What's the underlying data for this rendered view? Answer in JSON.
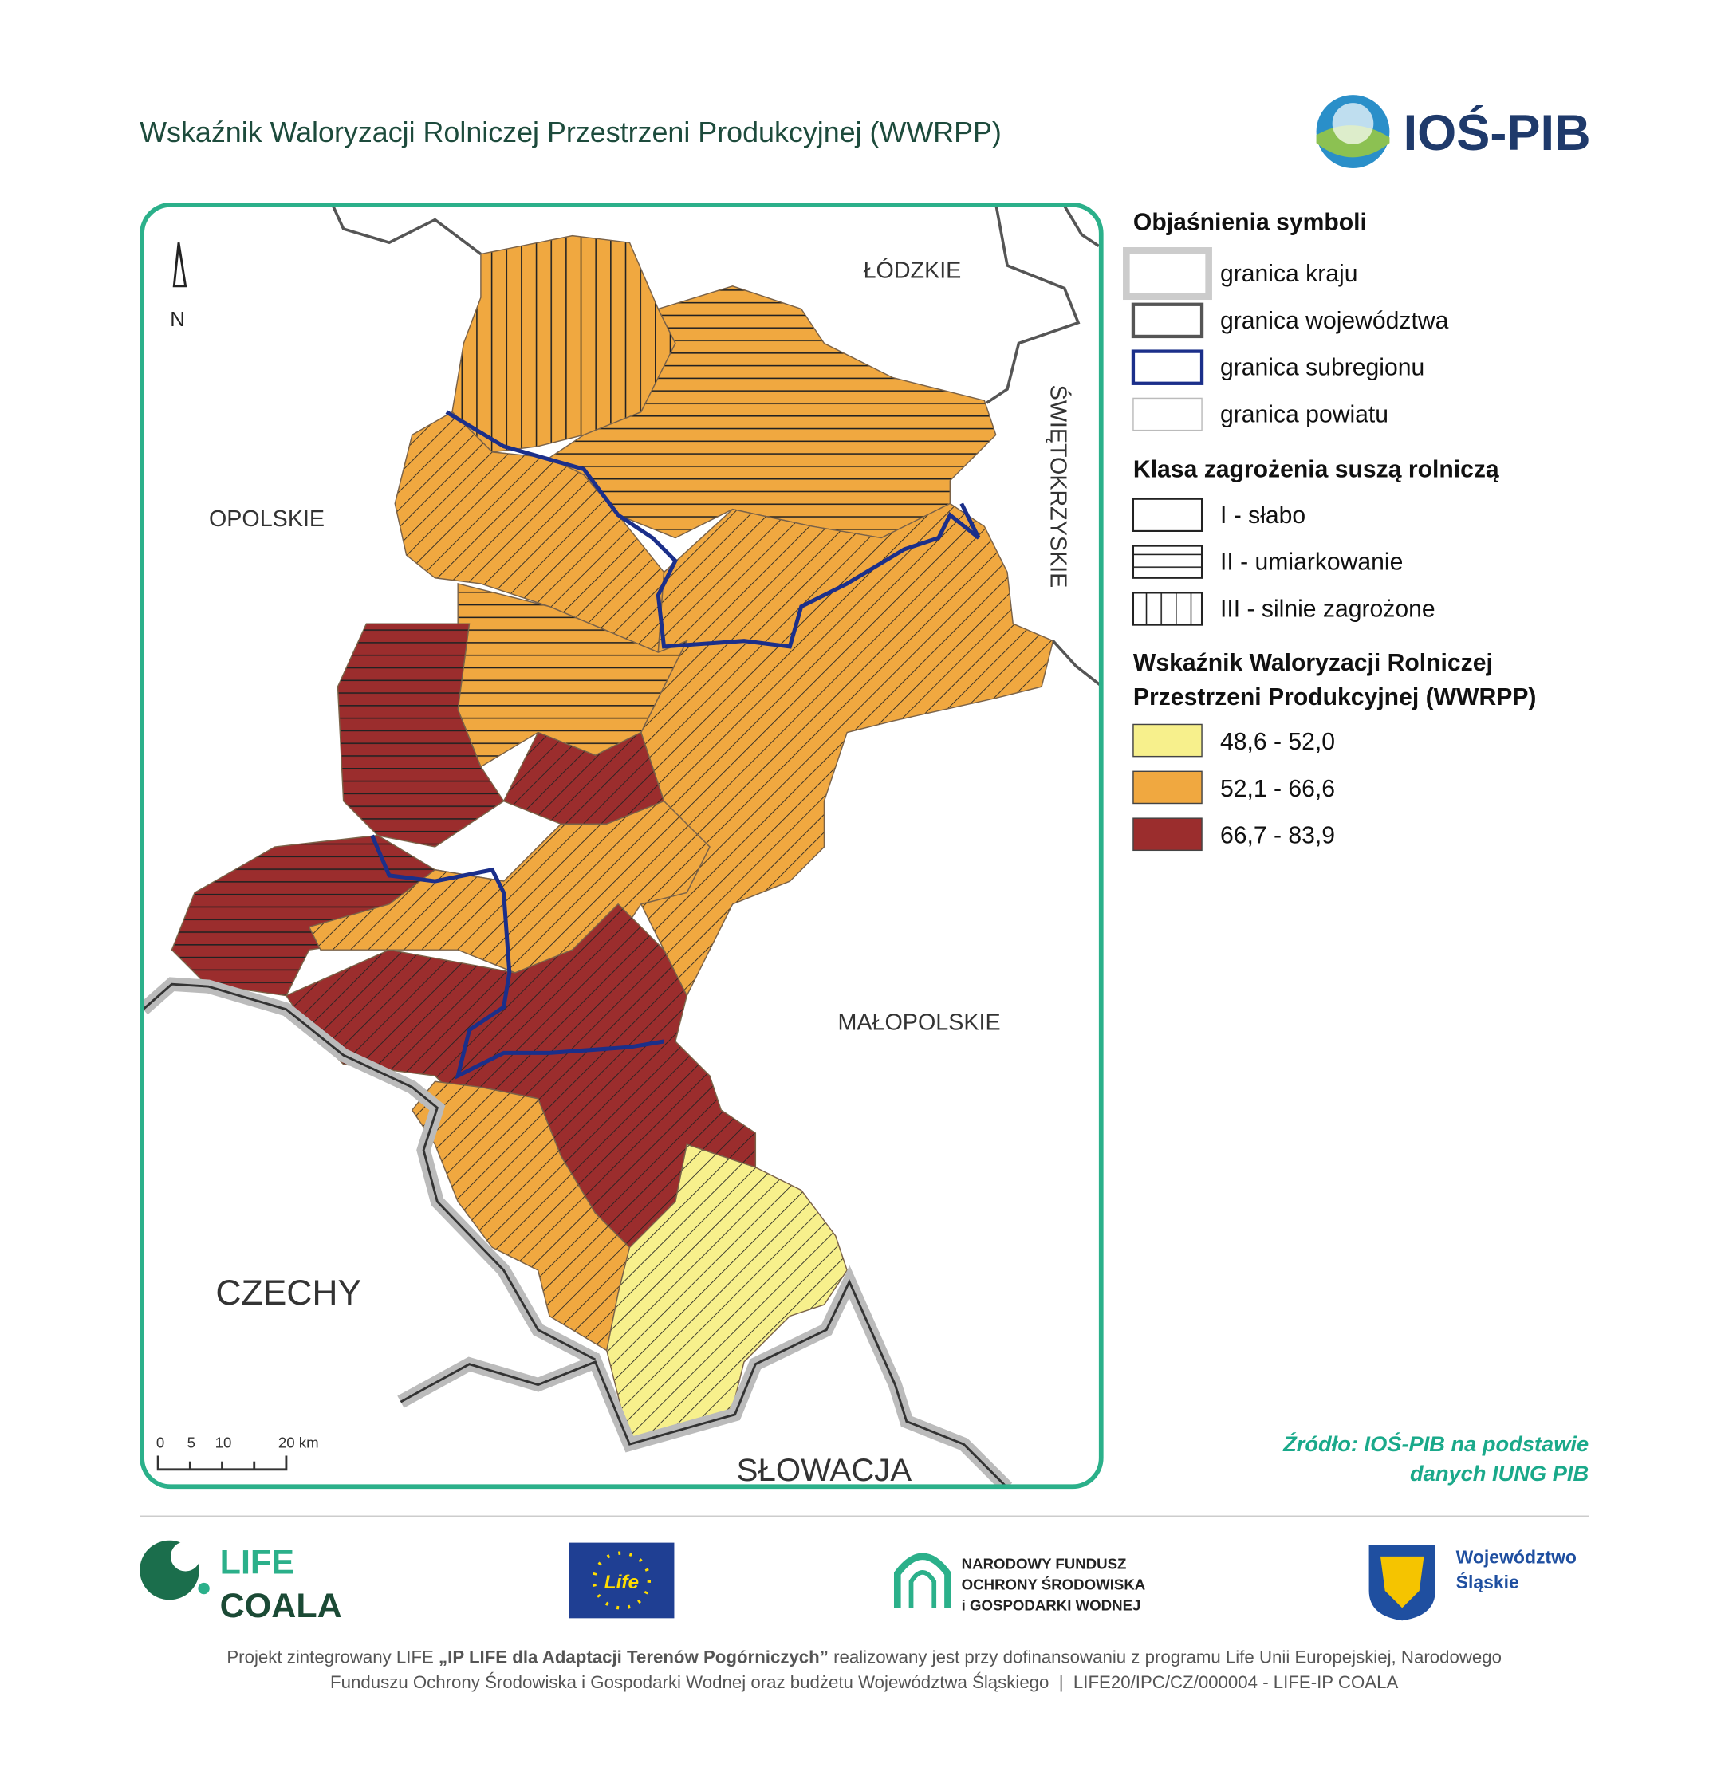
{
  "header": {
    "title": "Wskaźnik Waloryzacji Rolniczej Przestrzeni Produkcyjnej (WWRPP)",
    "logo": "IOŚ-PIB"
  },
  "map": {
    "labels": [
      "ŁÓDZKIE",
      "OPOLSKIE",
      "ŚWIĘTOKRZYSKIE",
      "MAŁOPOLSKIE",
      "CZECHY",
      "SŁOWACJA"
    ],
    "north": "N",
    "scale": [
      "0",
      "5",
      "10",
      "20 km"
    ]
  },
  "legend": {
    "symbols_title": "Objaśnienia symboli",
    "symbols": [
      "granica kraju",
      "granica województwa",
      "granica subregionu",
      "granica powiatu"
    ],
    "drought_title": "Klasa zagrożenia suszą rolniczą",
    "drought": [
      "I - słabo",
      "II - umiarkowanie",
      "III - silnie zagrożone"
    ],
    "index_title": [
      "Wskaźnik Waloryzacji Rolniczej",
      "Przestrzeni Produkcyjnej (WWRPP)"
    ],
    "index": [
      "48,6 - 52,0",
      "52,1 - 66,6",
      "66,7 - 83,9"
    ]
  },
  "source": [
    "Źródło: IOŚ-PIB na podstawie",
    "danych IUNG PIB"
  ],
  "footer": {
    "logos": {
      "life": [
        "LIFE",
        "COALA"
      ],
      "eu": "Life",
      "nfos": [
        "NARODOWY FUNDUSZ",
        "OCHRONY ŚRODOWISKA",
        "i GOSPODARKI WODNEJ"
      ],
      "wojewodztwo": [
        "Województwo",
        "Śląskie"
      ]
    },
    "text": {
      "line1": [
        "Projekt zintegrowany LIFE ",
        "„IP LIFE dla Adaptacji Terenów Pogórniczych”",
        " realizowany jest przy dofinansowaniu z programu Life Unii Europejskiej, Narodowego"
      ],
      "line2": "Funduszu Ochrony Środowiska i Gospodarki Wodnej oraz budżetu Województwa Śląskiego  |  LIFE20/IPC/CZ/000004 - LIFE-IP COALA"
    }
  }
}
